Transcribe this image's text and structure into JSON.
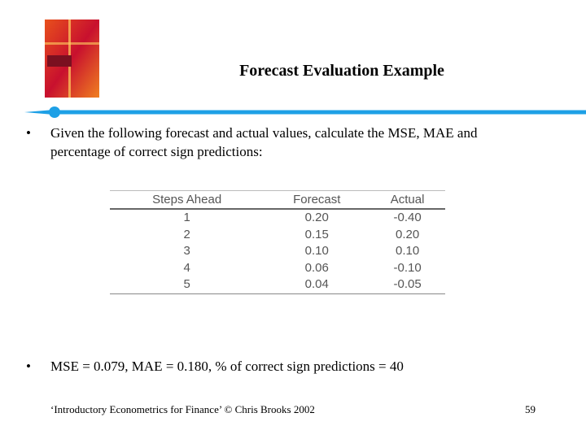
{
  "header": {
    "title": "Forecast Evaluation Example"
  },
  "bullets": [
    "Given the following forecast and actual values, calculate the MSE, MAE and percentage of correct sign predictions:",
    "MSE = 0.079, MAE = 0.180, % of correct sign predictions = 40"
  ],
  "table": {
    "columns": [
      "Steps Ahead",
      "Forecast",
      "Actual"
    ],
    "rows": [
      [
        "1",
        "0.20",
        "-0.40"
      ],
      [
        "2",
        "0.15",
        "0.20"
      ],
      [
        "3",
        "0.10",
        "0.10"
      ],
      [
        "4",
        "0.06",
        "-0.10"
      ],
      [
        "5",
        "0.04",
        "-0.05"
      ]
    ]
  },
  "footer": {
    "citation": "‘Introductory Econometrics for Finance’ © Chris Brooks 2002",
    "page": "59"
  }
}
